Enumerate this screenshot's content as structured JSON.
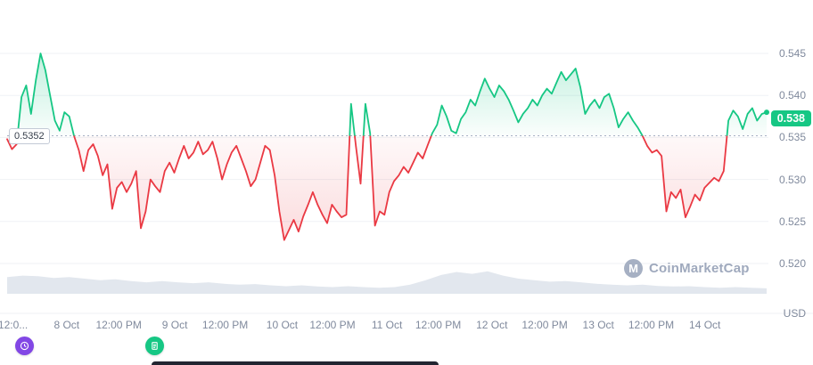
{
  "chart": {
    "watermark": {
      "text": "CoinMarketCap",
      "logo_glyph": "M"
    },
    "baseline": {
      "value": 0.5352,
      "label": "0.5352"
    },
    "last_price": {
      "value": 0.538,
      "label": "0.538"
    },
    "y_axis": {
      "unit": "USD",
      "ticks": [
        {
          "label": "0.545",
          "value": 0.545
        },
        {
          "label": "0.540",
          "value": 0.54
        },
        {
          "label": "0.535",
          "value": 0.535
        },
        {
          "label": "0.530",
          "value": 0.53
        },
        {
          "label": "0.525",
          "value": 0.525
        },
        {
          "label": "0.520",
          "value": 0.52
        }
      ]
    },
    "x_axis": {
      "ticks": [
        {
          "label": "12:0...",
          "f": 0.016
        },
        {
          "label": "8 Oct",
          "f": 0.082
        },
        {
          "label": "12:00 PM",
          "f": 0.146
        },
        {
          "label": "9 Oct",
          "f": 0.215
        },
        {
          "label": "12:00 PM",
          "f": 0.277
        },
        {
          "label": "10 Oct",
          "f": 0.347
        },
        {
          "label": "12:00 PM",
          "f": 0.409
        },
        {
          "label": "11 Oct",
          "f": 0.476
        },
        {
          "label": "12:00 PM",
          "f": 0.539
        },
        {
          "label": "12 Oct",
          "f": 0.605
        },
        {
          "label": "12:00 PM",
          "f": 0.67
        },
        {
          "label": "13 Oct",
          "f": 0.736
        },
        {
          "label": "12:00 PM",
          "f": 0.801
        },
        {
          "label": "14 Oct",
          "f": 0.867
        }
      ]
    },
    "colors": {
      "up": "#16c784",
      "down": "#ea3943",
      "grid": "#eff2f5",
      "axis_text": "#808a9d",
      "baseline": "#a6b0c3",
      "volume": "#e2e7ee",
      "badge_bg": "#16c784",
      "badge_text": "#ffffff",
      "watermark": "#a6b0c3",
      "tooltip_dark": "#222531"
    }
  },
  "annotations": {
    "markers": [
      {
        "name": "history-marker",
        "icon": "clock-icon",
        "color": "#8247e5",
        "f": 0.03
      },
      {
        "name": "news-marker",
        "icon": "news-icon",
        "color": "#16c784",
        "f": 0.19
      }
    ]
  },
  "chart_data": {
    "type": "line",
    "title": "",
    "xlabel": "",
    "ylabel": "USD",
    "ylim": [
      0.52,
      0.545
    ],
    "x_range": [
      "7 Oct 12:00 PM",
      "14 Oct 12:00 PM"
    ],
    "grid": true,
    "baseline": 0.5352,
    "series": [
      {
        "name": "price",
        "values": [
          0.5348,
          0.5336,
          0.5342,
          0.5398,
          0.5412,
          0.5378,
          0.5418,
          0.545,
          0.543,
          0.54,
          0.537,
          0.5358,
          0.538,
          0.5375,
          0.5352,
          0.5335,
          0.531,
          0.5335,
          0.5342,
          0.5328,
          0.5305,
          0.5318,
          0.5265,
          0.529,
          0.5297,
          0.5285,
          0.5295,
          0.531,
          0.5242,
          0.5262,
          0.53,
          0.5292,
          0.5285,
          0.531,
          0.532,
          0.5308,
          0.5325,
          0.534,
          0.5325,
          0.5332,
          0.5345,
          0.533,
          0.5335,
          0.5345,
          0.5325,
          0.53,
          0.5318,
          0.5332,
          0.534,
          0.5325,
          0.531,
          0.5292,
          0.53,
          0.532,
          0.534,
          0.5335,
          0.5305,
          0.5262,
          0.5228,
          0.524,
          0.5252,
          0.5238,
          0.5256,
          0.527,
          0.5285,
          0.527,
          0.5258,
          0.5248,
          0.527,
          0.5262,
          0.5255,
          0.5258,
          0.539,
          0.534,
          0.5295,
          0.539,
          0.5355,
          0.5245,
          0.5262,
          0.5258,
          0.5285,
          0.5298,
          0.5305,
          0.5315,
          0.5308,
          0.532,
          0.5332,
          0.5325,
          0.534,
          0.5355,
          0.5365,
          0.5388,
          0.5375,
          0.5358,
          0.5355,
          0.5372,
          0.538,
          0.5395,
          0.5388,
          0.5405,
          0.542,
          0.5408,
          0.5398,
          0.5412,
          0.5405,
          0.5395,
          0.5382,
          0.5368,
          0.5378,
          0.5385,
          0.5395,
          0.5388,
          0.54,
          0.5408,
          0.5402,
          0.5415,
          0.5428,
          0.5418,
          0.5425,
          0.5432,
          0.541,
          0.5378,
          0.5388,
          0.5395,
          0.5385,
          0.5398,
          0.5402,
          0.5385,
          0.5362,
          0.5372,
          0.538,
          0.537,
          0.5362,
          0.5352,
          0.534,
          0.5332,
          0.5335,
          0.5328,
          0.5262,
          0.5285,
          0.5278,
          0.5288,
          0.5255,
          0.5268,
          0.5282,
          0.5275,
          0.529,
          0.5296,
          0.5302,
          0.5298,
          0.531,
          0.537,
          0.5382,
          0.5375,
          0.536,
          0.5378,
          0.5385,
          0.537,
          0.5378,
          0.538
        ]
      }
    ],
    "volume_normalized": [
      0.55,
      0.6,
      0.58,
      0.52,
      0.55,
      0.5,
      0.45,
      0.48,
      0.42,
      0.38,
      0.42,
      0.38,
      0.35,
      0.38,
      0.33,
      0.3,
      0.32,
      0.28,
      0.25,
      0.28,
      0.24,
      0.22,
      0.25,
      0.22,
      0.2,
      0.22,
      0.3,
      0.45,
      0.62,
      0.72,
      0.66,
      0.74,
      0.6,
      0.5,
      0.45,
      0.4,
      0.42,
      0.38,
      0.33,
      0.3,
      0.28,
      0.3,
      0.26,
      0.24,
      0.25,
      0.22,
      0.2,
      0.22,
      0.2,
      0.18
    ]
  }
}
